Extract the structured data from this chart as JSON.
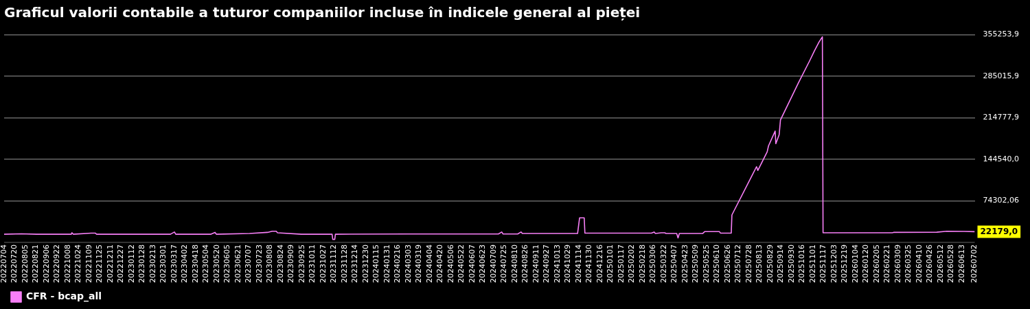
{
  "chart_data": {
    "type": "line",
    "title": "Graficul valorii contabile a tuturor companiilor incluse în indicele general al pieței",
    "x": [
      "2022-07-04",
      "2022-07-30",
      "2022-08-22",
      "2022-10-13",
      "2022-10-14",
      "2022-10-16",
      "2022-11-12",
      "2022-11-18",
      "2022-11-20",
      "2023-03-11",
      "2023-03-17",
      "2023-03-19",
      "2023-05-11",
      "2023-05-17",
      "2023-05-19",
      "2023-07-08",
      "2023-08-04",
      "2023-08-11",
      "2023-08-17",
      "2023-08-19",
      "2023-09-24",
      "2023-11-09",
      "2023-11-10",
      "2023-11-13",
      "2023-11-14",
      "2024-02-29",
      "2024-07-16",
      "2024-07-21",
      "2024-07-23",
      "2024-08-14",
      "2024-08-19",
      "2024-08-21",
      "2024-11-12",
      "2024-11-15",
      "2024-11-22",
      "2024-11-23",
      "2025-03-03",
      "2025-03-07",
      "2025-03-09",
      "2025-03-18",
      "2025-03-23",
      "2025-03-25",
      "2025-04-10",
      "2025-04-12",
      "2025-04-14",
      "2025-05-19",
      "2025-05-22",
      "2025-06-13",
      "2025-06-15",
      "2025-07-01",
      "2025-07-02",
      "2025-08-08",
      "2025-08-10",
      "2025-08-24",
      "2025-08-26",
      "2025-09-05",
      "2025-09-06",
      "2025-09-11",
      "2025-09-13",
      "2025-10-03",
      "2025-10-10",
      "2025-10-27",
      "2025-11-03",
      "2025-11-10",
      "2025-11-15",
      "2025-11-16",
      "2026-02-28",
      "2026-03-02",
      "2026-05-06",
      "2026-05-21",
      "2026-06-16",
      "2026-07-02"
    ],
    "series": [
      {
        "name": "CFR - bcap_all",
        "color": "#f77ff7",
        "values": [
          17900,
          18500,
          17900,
          17900,
          20400,
          17900,
          19800,
          19800,
          17900,
          17900,
          21600,
          17900,
          17900,
          21000,
          17900,
          19100,
          21000,
          22900,
          22900,
          20400,
          17900,
          17900,
          9100,
          9100,
          17900,
          18300,
          18300,
          21600,
          18300,
          18300,
          21600,
          19100,
          19100,
          45500,
          45500,
          19800,
          19800,
          21600,
          19100,
          20400,
          20400,
          19100,
          19100,
          11600,
          19100,
          19100,
          22300,
          22300,
          19800,
          19800,
          50500,
          132000,
          125700,
          157100,
          167100,
          192200,
          170900,
          185900,
          211000,
          257400,
          273700,
          311300,
          327600,
          342700,
          351500,
          20400,
          20400,
          21000,
          21300,
          22900,
          22700,
          22179
        ]
      }
    ],
    "xlim": [
      "2022-07-04",
      "2026-07-02"
    ],
    "xticks": [
      {
        "value": "2022-07-04",
        "label": "20220704"
      },
      {
        "value": "2022-07-20",
        "label": "20220720"
      },
      {
        "value": "2022-08-05",
        "label": "20220805"
      },
      {
        "value": "2022-08-21",
        "label": "20220821"
      },
      {
        "value": "2022-09-06",
        "label": "20220906"
      },
      {
        "value": "2022-09-22",
        "label": "20220922"
      },
      {
        "value": "2022-10-08",
        "label": "20221008"
      },
      {
        "value": "2022-10-24",
        "label": "20221024"
      },
      {
        "value": "2022-11-09",
        "label": "20221109"
      },
      {
        "value": "2022-11-25",
        "label": "20221125"
      },
      {
        "value": "2022-12-11",
        "label": "20221211"
      },
      {
        "value": "2022-12-27",
        "label": "20221227"
      },
      {
        "value": "2023-01-12",
        "label": "20230112"
      },
      {
        "value": "2023-01-28",
        "label": "20230128"
      },
      {
        "value": "2023-02-13",
        "label": "20230213"
      },
      {
        "value": "2023-03-01",
        "label": "20230301"
      },
      {
        "value": "2023-03-17",
        "label": "20230317"
      },
      {
        "value": "2023-04-02",
        "label": "20230402"
      },
      {
        "value": "2023-04-18",
        "label": "20230418"
      },
      {
        "value": "2023-05-04",
        "label": "20230504"
      },
      {
        "value": "2023-05-20",
        "label": "20230520"
      },
      {
        "value": "2023-06-05",
        "label": "20230605"
      },
      {
        "value": "2023-06-21",
        "label": "20230621"
      },
      {
        "value": "2023-07-07",
        "label": "20230707"
      },
      {
        "value": "2023-07-23",
        "label": "20230723"
      },
      {
        "value": "2023-08-08",
        "label": "20230808"
      },
      {
        "value": "2023-08-24",
        "label": "20230824"
      },
      {
        "value": "2023-09-09",
        "label": "20230909"
      },
      {
        "value": "2023-09-25",
        "label": "20230925"
      },
      {
        "value": "2023-10-11",
        "label": "20231011"
      },
      {
        "value": "2023-10-27",
        "label": "20231027"
      },
      {
        "value": "2023-11-12",
        "label": "20231112"
      },
      {
        "value": "2023-11-28",
        "label": "20231128"
      },
      {
        "value": "2023-12-14",
        "label": "20231214"
      },
      {
        "value": "2023-12-30",
        "label": "20231230"
      },
      {
        "value": "2024-01-15",
        "label": "20240115"
      },
      {
        "value": "2024-01-31",
        "label": "20240131"
      },
      {
        "value": "2024-02-16",
        "label": "20240216"
      },
      {
        "value": "2024-03-03",
        "label": "20240303"
      },
      {
        "value": "2024-03-19",
        "label": "20240319"
      },
      {
        "value": "2024-04-04",
        "label": "20240404"
      },
      {
        "value": "2024-04-20",
        "label": "20240420"
      },
      {
        "value": "2024-05-06",
        "label": "20240506"
      },
      {
        "value": "2024-05-22",
        "label": "20240522"
      },
      {
        "value": "2024-06-07",
        "label": "20240607"
      },
      {
        "value": "2024-06-23",
        "label": "20240623"
      },
      {
        "value": "2024-07-09",
        "label": "20240709"
      },
      {
        "value": "2024-07-25",
        "label": "20240725"
      },
      {
        "value": "2024-08-10",
        "label": "20240810"
      },
      {
        "value": "2024-08-26",
        "label": "20240826"
      },
      {
        "value": "2024-09-11",
        "label": "20240911"
      },
      {
        "value": "2024-09-27",
        "label": "20240927"
      },
      {
        "value": "2024-10-13",
        "label": "20241013"
      },
      {
        "value": "2024-10-29",
        "label": "20241029"
      },
      {
        "value": "2024-11-14",
        "label": "20241114"
      },
      {
        "value": "2024-11-30",
        "label": "20241130"
      },
      {
        "value": "2024-12-16",
        "label": "20241216"
      },
      {
        "value": "2025-01-01",
        "label": "20250101"
      },
      {
        "value": "2025-01-17",
        "label": "20250117"
      },
      {
        "value": "2025-02-02",
        "label": "20250202"
      },
      {
        "value": "2025-02-18",
        "label": "20250218"
      },
      {
        "value": "2025-03-06",
        "label": "20250306"
      },
      {
        "value": "2025-03-22",
        "label": "20250322"
      },
      {
        "value": "2025-04-07",
        "label": "20250407"
      },
      {
        "value": "2025-04-23",
        "label": "20250423"
      },
      {
        "value": "2025-05-09",
        "label": "20250509"
      },
      {
        "value": "2025-05-25",
        "label": "20250525"
      },
      {
        "value": "2025-06-10",
        "label": "20250610"
      },
      {
        "value": "2025-06-26",
        "label": "20250626"
      },
      {
        "value": "2025-07-12",
        "label": "20250712"
      },
      {
        "value": "2025-07-28",
        "label": "20250728"
      },
      {
        "value": "2025-08-13",
        "label": "20250813"
      },
      {
        "value": "2025-08-29",
        "label": "20250829"
      },
      {
        "value": "2025-09-14",
        "label": "20250914"
      },
      {
        "value": "2025-09-30",
        "label": "20250930"
      },
      {
        "value": "2025-10-16",
        "label": "20251016"
      },
      {
        "value": "2025-11-01",
        "label": "20251101"
      },
      {
        "value": "2025-11-17",
        "label": "20251117"
      },
      {
        "value": "2025-12-03",
        "label": "20251203"
      },
      {
        "value": "2025-12-19",
        "label": "20251219"
      },
      {
        "value": "2026-01-04",
        "label": "20260104"
      },
      {
        "value": "2026-01-20",
        "label": "20260120"
      },
      {
        "value": "2026-02-05",
        "label": "20260205"
      },
      {
        "value": "2026-02-21",
        "label": "20260221"
      },
      {
        "value": "2026-03-09",
        "label": "20260309"
      },
      {
        "value": "2026-03-25",
        "label": "20260325"
      },
      {
        "value": "2026-04-10",
        "label": "20260410"
      },
      {
        "value": "2026-04-26",
        "label": "20260426"
      },
      {
        "value": "2026-05-12",
        "label": "20260512"
      },
      {
        "value": "2026-05-28",
        "label": "20260528"
      },
      {
        "value": "2026-06-13",
        "label": "20260613"
      },
      {
        "value": "2026-07-02",
        "label": "20260702"
      }
    ],
    "ylim": [
      4064.1,
      358000
    ],
    "yticks": [
      {
        "value": 74302.06,
        "label": "74302,06"
      },
      {
        "value": 144540.0,
        "label": "144540,0"
      },
      {
        "value": 214777.9,
        "label": "214777,9"
      },
      {
        "value": 285015.9,
        "label": "285015,9"
      },
      {
        "value": 355253.9,
        "label": "355253,9"
      }
    ],
    "annotations": [
      {
        "text": "22179,0",
        "x": "2026-07-02",
        "y": 22179
      }
    ],
    "grid": "y",
    "legend": "bottom left",
    "marker": "none",
    "line_style": "solid"
  }
}
